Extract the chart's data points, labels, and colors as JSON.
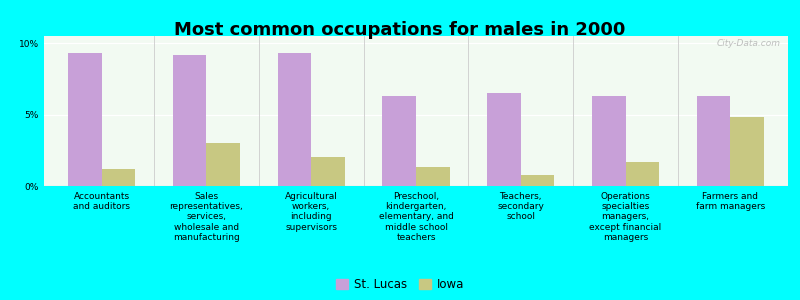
{
  "title": "Most common occupations for males in 2000",
  "categories": [
    "Accountants\nand auditors",
    "Sales\nrepresentatives,\nservices,\nwholesale and\nmanufacturing",
    "Agricultural\nworkers,\nincluding\nsupervisors",
    "Preschool,\nkindergarten,\nelementary, and\nmiddle school\nteachers",
    "Teachers,\nsecondary\nschool",
    "Operations\nspecialties\nmanagers,\nexcept financial\nmanagers",
    "Farmers and\nfarm managers"
  ],
  "st_lucas_values": [
    9.3,
    9.2,
    9.3,
    6.3,
    6.5,
    6.3,
    6.3
  ],
  "iowa_values": [
    1.2,
    3.0,
    2.0,
    1.3,
    0.8,
    1.7,
    4.8
  ],
  "st_lucas_color": "#c8a0d8",
  "iowa_color": "#c8c882",
  "background_color": "#00ffff",
  "plot_bg_color": "#f2faf2",
  "ylim": [
    0,
    10.5
  ],
  "yticks": [
    0,
    5,
    10
  ],
  "ytick_labels": [
    "0%",
    "5%",
    "10%"
  ],
  "bar_width": 0.32,
  "legend_labels": [
    "St. Lucas",
    "Iowa"
  ],
  "title_fontsize": 13,
  "tick_fontsize": 6.5,
  "legend_fontsize": 8.5,
  "watermark": "City-Data.com"
}
